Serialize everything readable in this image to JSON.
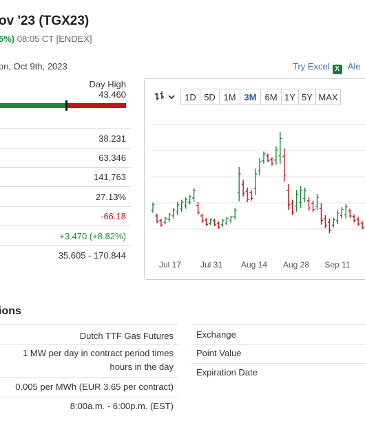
{
  "header": {
    "title": "ov '23 (TGX23)",
    "change_pct": "5%)",
    "time": "08:05 CT [ENDEX]",
    "date": "on, Oct 9th, 2023"
  },
  "tools": {
    "try_excel": "Try Excel",
    "excel_icon": "X",
    "alerts": "Ale"
  },
  "day_range": {
    "label": "Day High",
    "value": "43.460",
    "marker_fraction": 0.53
  },
  "stats": [
    {
      "value": "38.231",
      "color": "#333333"
    },
    {
      "value": "63,346",
      "color": "#333333"
    },
    {
      "value": "141,763",
      "color": "#333333"
    },
    {
      "value": "27.13%",
      "color": "#333333"
    },
    {
      "value": "-66.18",
      "color": "#c0141b"
    },
    {
      "value": "+3.470 (+8.82%)",
      "color": "#1a8a3a"
    },
    {
      "value": "35.605 - 170.844",
      "color": "#333333"
    }
  ],
  "chart": {
    "type_icon": "candlestick-icon",
    "periods": [
      "1D",
      "5D",
      "1M",
      "3M",
      "6M",
      "1Y",
      "5Y",
      "MAX"
    ],
    "active_period": "3M",
    "x_labels": [
      "Jul 17",
      "Jul 31",
      "Aug 14",
      "Aug 28",
      "Sep 11"
    ]
  },
  "chart_data": {
    "type": "ohlc",
    "series": [
      {
        "values": [
          [
            34.0,
            36.5
          ],
          [
            31.5,
            33.8
          ],
          [
            30.6,
            32.6
          ],
          [
            31.2,
            33.0
          ],
          [
            31.8,
            34.0
          ],
          [
            32.6,
            35.2
          ],
          [
            33.4,
            36.6
          ],
          [
            34.2,
            37.2
          ],
          [
            35.0,
            37.8
          ],
          [
            36.0,
            38.4
          ],
          [
            36.8,
            40.1
          ],
          [
            33.5,
            36.6
          ],
          [
            31.6,
            33.8
          ],
          [
            30.8,
            32.7
          ],
          [
            31.0,
            32.6
          ],
          [
            30.7,
            32.5
          ],
          [
            30.1,
            31.9
          ],
          [
            30.6,
            32.5
          ],
          [
            31.0,
            33.0
          ],
          [
            31.6,
            33.3
          ],
          [
            32.4,
            35.2
          ],
          [
            36.8,
            45.2
          ],
          [
            38.0,
            42.0
          ],
          [
            36.6,
            40.2
          ],
          [
            37.0,
            39.6
          ],
          [
            38.4,
            44.8
          ],
          [
            43.2,
            47.4
          ],
          [
            46.0,
            49.0
          ],
          [
            46.4,
            48.5
          ],
          [
            45.6,
            47.6
          ],
          [
            45.8,
            50.3
          ],
          [
            46.0,
            53.8
          ],
          [
            41.6,
            49.8
          ],
          [
            34.7,
            41.0
          ],
          [
            33.4,
            37.2
          ],
          [
            34.3,
            39.6
          ],
          [
            35.2,
            40.6
          ],
          [
            36.6,
            40.2
          ],
          [
            34.5,
            37.8
          ],
          [
            34.2,
            37.0
          ],
          [
            34.6,
            38.6
          ],
          [
            31.1,
            36.4
          ],
          [
            30.2,
            33.4
          ],
          [
            29.0,
            32.6
          ],
          [
            30.4,
            32.8
          ],
          [
            31.2,
            34.6
          ],
          [
            32.6,
            35.4
          ],
          [
            32.6,
            36.2
          ],
          [
            32.8,
            35.0
          ],
          [
            31.7,
            33.6
          ],
          [
            30.8,
            33.0
          ],
          [
            30.0,
            32.0
          ],
          [
            30.2,
            32.4
          ]
        ]
      }
    ],
    "ylim": [
      26,
      58
    ]
  },
  "specs_title": "ions",
  "specs_left": [
    {
      "value": "Dutch TTF Gas Futures"
    },
    {
      "value": "1 MW per day in contract period times hours in the day"
    },
    {
      "value": "0.005 per MWh (EUR 3.65 per contract)"
    },
    {
      "value": "8:00a.m. - 6:00p.m. (EST)"
    }
  ],
  "specs_right": [
    {
      "label": "Exchange"
    },
    {
      "label": "Point Value"
    },
    {
      "label": "Expiration Date"
    }
  ],
  "colors": {
    "up": "#1a8a3a",
    "down": "#c0141b",
    "link": "#3b72b8",
    "active_period": "#2a62a5"
  }
}
